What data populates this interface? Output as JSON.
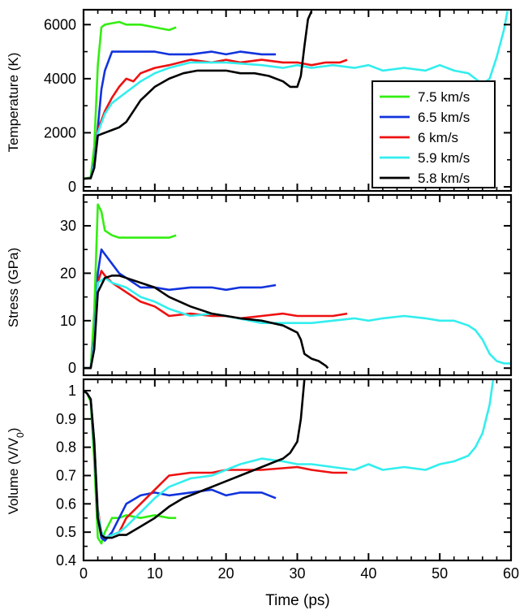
{
  "chart_data": {
    "type": "line",
    "xlabel": "Time (ps)",
    "xlim": [
      0,
      60
    ],
    "x_ticks": [
      0,
      10,
      20,
      30,
      40,
      50,
      60
    ],
    "legend": {
      "placement": "inside top panel, lower-right",
      "entries": [
        {
          "name": "7.5 km/s",
          "color": "#33ee11"
        },
        {
          "name": "6.5 km/s",
          "color": "#1133dd"
        },
        {
          "name": "6 km/s",
          "color": "#ee1111"
        },
        {
          "name": "5.9 km/s",
          "color": "#33eeee"
        },
        {
          "name": "5.8 km/s",
          "color": "#000000"
        }
      ]
    },
    "panels": [
      {
        "id": "temperature",
        "ylabel": "Temperature (K)",
        "ylim": [
          -150,
          6550
        ],
        "y_ticks": [
          0,
          2000,
          4000,
          6000
        ],
        "series": [
          {
            "name": "7.5 km/s",
            "x": [
              0,
              1,
              1.5,
              2,
              2.5,
              3,
              4,
              5,
              6,
              8,
              10,
              12,
              13
            ],
            "y": [
              300,
              350,
              1500,
              4500,
              5900,
              6000,
              6050,
              6100,
              6000,
              6000,
              5900,
              5800,
              5900
            ]
          },
          {
            "name": "6.5 km/s",
            "x": [
              0,
              1,
              1.5,
              2,
              2.5,
              3,
              4,
              5,
              6,
              8,
              10,
              12,
              15,
              18,
              20,
              22,
              25,
              27
            ],
            "y": [
              300,
              320,
              900,
              2200,
              3600,
              4300,
              5000,
              5000,
              5000,
              5000,
              5000,
              4900,
              4900,
              5000,
              4900,
              5000,
              4900,
              4900
            ]
          },
          {
            "name": "6 km/s",
            "x": [
              0,
              1,
              1.5,
              2,
              3,
              4,
              5,
              6,
              7,
              8,
              9,
              10,
              12,
              15,
              18,
              20,
              22,
              25,
              28,
              30,
              32,
              34,
              36,
              37
            ],
            "y": [
              300,
              320,
              800,
              2100,
              2800,
              3300,
              3700,
              4000,
              3900,
              4200,
              4300,
              4400,
              4500,
              4700,
              4600,
              4700,
              4600,
              4700,
              4600,
              4600,
              4500,
              4600,
              4600,
              4700
            ]
          },
          {
            "name": "5.9 km/s",
            "x": [
              0,
              1,
              1.5,
              2,
              3,
              4,
              5,
              6,
              7,
              8,
              10,
              12,
              15,
              18,
              20,
              25,
              28,
              30,
              32,
              35,
              38,
              40,
              42,
              45,
              48,
              50,
              52,
              54,
              55,
              56,
              57,
              58,
              59,
              59.5
            ],
            "y": [
              300,
              320,
              800,
              2000,
              2700,
              3100,
              3300,
              3500,
              3700,
              3900,
              4200,
              4400,
              4600,
              4600,
              4600,
              4500,
              4400,
              4500,
              4400,
              4500,
              4400,
              4500,
              4300,
              4400,
              4300,
              4500,
              4300,
              4200,
              4000,
              3800,
              4000,
              4800,
              5800,
              6500
            ]
          },
          {
            "name": "5.8 km/s",
            "x": [
              0,
              1,
              1.5,
              2,
              3,
              4,
              5,
              6,
              7,
              8,
              10,
              12,
              14,
              16,
              18,
              20,
              22,
              24,
              26,
              28,
              29,
              30,
              30.5,
              31,
              31.5,
              32
            ],
            "y": [
              300,
              320,
              700,
              1900,
              2000,
              2100,
              2200,
              2400,
              2800,
              3200,
              3700,
              4000,
              4200,
              4300,
              4300,
              4300,
              4200,
              4200,
              4100,
              3900,
              3700,
              3700,
              4100,
              5200,
              6200,
              6500
            ]
          }
        ]
      },
      {
        "id": "stress",
        "ylabel": "Stress (GPa)",
        "ylim": [
          -1.5,
          36.5
        ],
        "y_ticks": [
          0,
          10,
          20,
          30
        ],
        "series": [
          {
            "name": "7.5 km/s",
            "x": [
              0,
              1,
              1.5,
              2,
              2.5,
              3,
              4,
              5,
              6,
              8,
              10,
              12,
              13
            ],
            "y": [
              0,
              0,
              12,
              34.5,
              33,
              29,
              28,
              27.5,
              27.5,
              27.5,
              27.5,
              27.5,
              28
            ]
          },
          {
            "name": "6.5 km/s",
            "x": [
              0,
              1,
              1.5,
              2,
              2.5,
              3,
              4,
              5,
              6,
              7,
              8,
              10,
              12,
              15,
              18,
              20,
              22,
              25,
              27
            ],
            "y": [
              0,
              0,
              6,
              20,
              25,
              24,
              22,
              20,
              19,
              18,
              17,
              17,
              16.5,
              17,
              17,
              16.5,
              17,
              17,
              17.5
            ]
          },
          {
            "name": "6 km/s",
            "x": [
              0,
              1,
              1.5,
              2,
              2.5,
              3,
              4,
              5,
              6,
              8,
              10,
              12,
              15,
              18,
              20,
              22,
              25,
              28,
              30,
              32,
              35,
              37
            ],
            "y": [
              0,
              0,
              5,
              18,
              20.5,
              19.5,
              18,
              17,
              16,
              14,
              13,
              11,
              11.5,
              11,
              11,
              10.5,
              11,
              11.5,
              11,
              11,
              11,
              11.5
            ]
          },
          {
            "name": "5.9 km/s",
            "x": [
              0,
              1,
              1.5,
              2,
              3,
              4,
              5,
              6,
              8,
              10,
              12,
              15,
              18,
              20,
              25,
              28,
              30,
              32,
              35,
              38,
              40,
              42,
              45,
              48,
              50,
              52,
              54,
              55,
              56,
              57,
              58,
              59,
              60
            ],
            "y": [
              0,
              0,
              5,
              18,
              19,
              18,
              17.5,
              17,
              15,
              14,
              12.5,
              11,
              11.5,
              11,
              9.5,
              9.5,
              9.5,
              9.5,
              10,
              10.5,
              10,
              10.5,
              11,
              10.5,
              10,
              10,
              9,
              8,
              6,
              3,
              1.5,
              1,
              1
            ]
          },
          {
            "name": "5.8 km/s",
            "x": [
              0,
              1,
              1.5,
              2,
              3,
              4,
              5,
              6,
              8,
              10,
              12,
              15,
              18,
              20,
              22,
              25,
              28,
              30,
              30.5,
              31,
              32,
              33,
              34,
              34.3
            ],
            "y": [
              0,
              0,
              4,
              16,
              19,
              19.5,
              19.5,
              19,
              18,
              17,
              15,
              13,
              11.5,
              11,
              10.5,
              10,
              9,
              7.5,
              6,
              3,
              2,
              1.5,
              0.5,
              0
            ]
          }
        ]
      },
      {
        "id": "volume",
        "ylabel": "Volume (V/V0)",
        "ylim": [
          0.4,
          1.04
        ],
        "y_ticks": [
          0.4,
          0.5,
          0.6,
          0.7,
          0.8,
          0.9,
          1.0
        ],
        "series": [
          {
            "name": "7.5 km/s",
            "x": [
              0,
              0.5,
              1,
              1.5,
              2,
              2.5,
              3,
              4,
              5,
              6,
              8,
              10,
              12,
              13
            ],
            "y": [
              1.0,
              0.99,
              0.96,
              0.75,
              0.48,
              0.46,
              0.5,
              0.55,
              0.55,
              0.56,
              0.55,
              0.56,
              0.55,
              0.55
            ]
          },
          {
            "name": "6.5 km/s",
            "x": [
              0,
              0.5,
              1,
              1.5,
              2,
              2.5,
              3,
              4,
              5,
              6,
              8,
              10,
              12,
              15,
              18,
              20,
              22,
              25,
              27
            ],
            "y": [
              1.0,
              0.99,
              0.97,
              0.8,
              0.55,
              0.48,
              0.47,
              0.5,
              0.55,
              0.6,
              0.63,
              0.64,
              0.63,
              0.64,
              0.65,
              0.63,
              0.64,
              0.64,
              0.62
            ]
          },
          {
            "name": "6 km/s",
            "x": [
              0,
              0.5,
              1,
              1.5,
              2,
              2.5,
              3,
              4,
              5,
              6,
              8,
              10,
              12,
              15,
              18,
              20,
              25,
              30,
              32,
              35,
              37
            ],
            "y": [
              1.0,
              0.99,
              0.97,
              0.82,
              0.58,
              0.5,
              0.48,
              0.49,
              0.5,
              0.55,
              0.6,
              0.65,
              0.7,
              0.71,
              0.71,
              0.72,
              0.72,
              0.73,
              0.72,
              0.71,
              0.71
            ]
          },
          {
            "name": "5.9 km/s",
            "x": [
              0,
              0.5,
              1,
              1.5,
              2,
              2.5,
              3,
              4,
              5,
              6,
              8,
              10,
              12,
              15,
              18,
              20,
              22,
              25,
              28,
              30,
              32,
              35,
              38,
              40,
              42,
              45,
              48,
              50,
              52,
              54,
              55,
              56,
              57,
              57.5
            ],
            "y": [
              1.0,
              0.99,
              0.97,
              0.82,
              0.57,
              0.5,
              0.48,
              0.49,
              0.5,
              0.52,
              0.57,
              0.62,
              0.66,
              0.69,
              0.7,
              0.72,
              0.74,
              0.76,
              0.75,
              0.74,
              0.74,
              0.73,
              0.72,
              0.74,
              0.72,
              0.73,
              0.72,
              0.74,
              0.75,
              0.77,
              0.8,
              0.85,
              0.95,
              1.04
            ]
          },
          {
            "name": "5.8 km/s",
            "x": [
              0,
              0.5,
              1,
              1.5,
              2,
              2.5,
              3,
              4,
              5,
              6,
              8,
              10,
              12,
              14,
              16,
              18,
              20,
              22,
              24,
              26,
              27,
              28,
              29,
              30,
              30.5,
              31
            ],
            "y": [
              1.0,
              0.99,
              0.97,
              0.82,
              0.55,
              0.49,
              0.48,
              0.48,
              0.49,
              0.49,
              0.52,
              0.55,
              0.59,
              0.62,
              0.64,
              0.66,
              0.68,
              0.7,
              0.72,
              0.74,
              0.75,
              0.76,
              0.78,
              0.82,
              0.9,
              1.04
            ]
          }
        ]
      }
    ]
  }
}
